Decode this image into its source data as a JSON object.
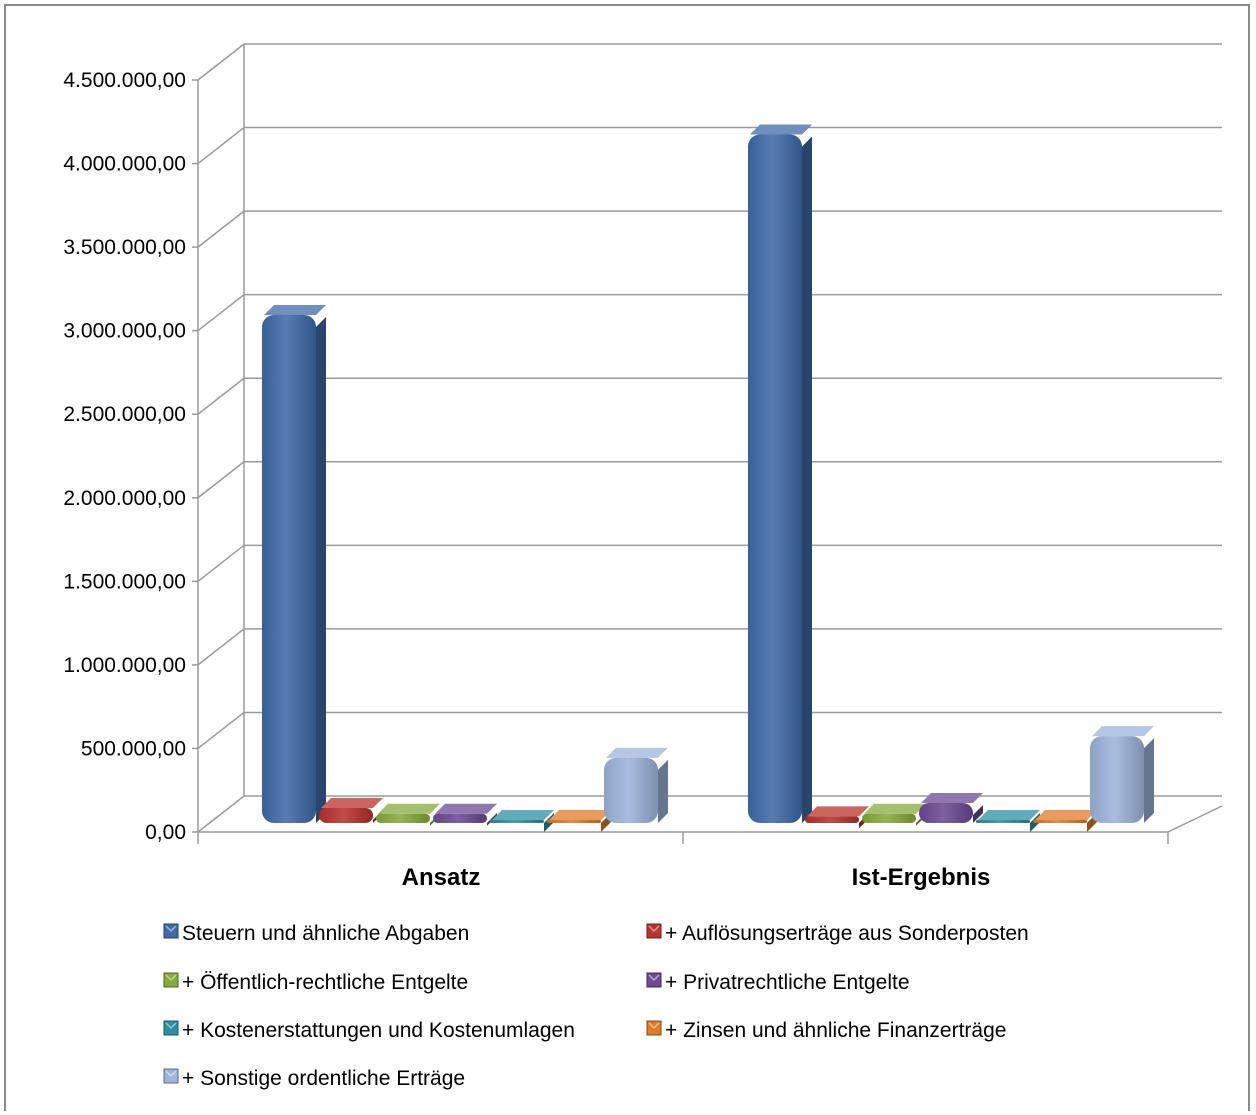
{
  "chart_data": {
    "type": "bar",
    "subtype": "3d-clustered-column",
    "categories": [
      "Ansatz",
      "Ist-Ergebnis"
    ],
    "series": [
      {
        "name": "Steuern und ähnliche Abgaben",
        "values": [
          3040000,
          4120000
        ],
        "color": "#3f6aa8"
      },
      {
        "name": "+ Auflösungserträge aus Sonderposten",
        "values": [
          90000,
          40000
        ],
        "color": "#b8322e"
      },
      {
        "name": "+ Öffentlich-rechtliche Entgelte",
        "values": [
          55000,
          55000
        ],
        "color": "#87aa3c"
      },
      {
        "name": "+ Privatrechtliche Entgelte",
        "values": [
          55000,
          120000
        ],
        "color": "#6c4a94"
      },
      {
        "name": "+ Kostenerstattungen und Kostenumlagen",
        "values": [
          5000,
          5000
        ],
        "color": "#2d8fa3"
      },
      {
        "name": "+ Zinsen und ähnliche Finanzerträge",
        "values": [
          5000,
          5000
        ],
        "color": "#e07a2a"
      },
      {
        "name": "+ Sonstige ordentliche Erträge",
        "values": [
          390000,
          520000
        ],
        "color": "#9db4dc"
      }
    ],
    "yticks": [
      "0,00",
      "500.000,00",
      "1.000.000,00",
      "1.500.000,00",
      "2.000.000,00",
      "2.500.000,00",
      "3.000.000,00",
      "3.500.000,00",
      "4.000.000,00",
      "4.500.000,00"
    ],
    "ylim": [
      0,
      4500000
    ],
    "grid": true,
    "legend_position": "bottom"
  }
}
